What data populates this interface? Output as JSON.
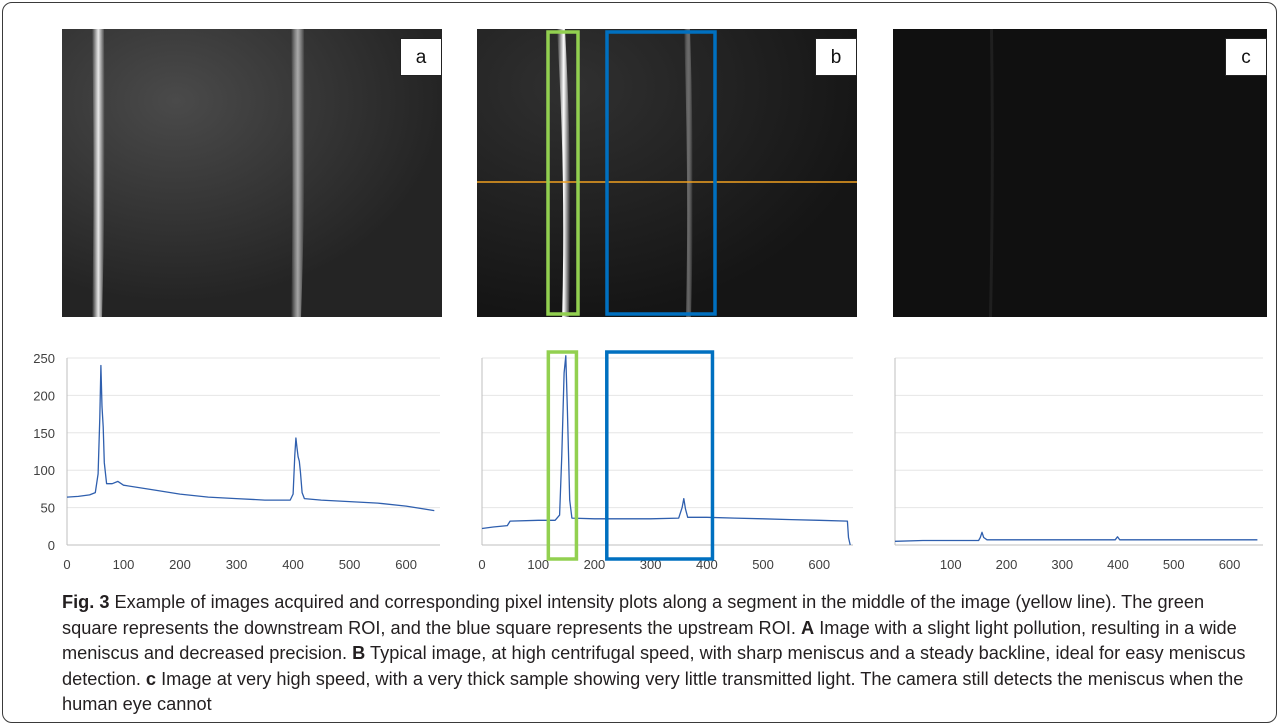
{
  "panels": [
    {
      "id": "a",
      "label": "a"
    },
    {
      "id": "b",
      "label": "b"
    },
    {
      "id": "c",
      "label": "c"
    }
  ],
  "colors": {
    "profile_line": "#2f5fae",
    "grid": "#e6e6e6",
    "downstream_roi": "#92d050",
    "upstream_roi": "#0070c0",
    "segment_line": "#f0a020",
    "tick_label": "#404040"
  },
  "caption": {
    "fig_label": "Fig. 3",
    "text_1": " Example of images acquired and corresponding pixel intensity plots along a segment in the middle of the image (yellow line). The green square represents the downstream ROI, and the blue square represents the upstream ROI. ",
    "a_label": "A",
    "text_a": " Image with a slight light pollution, resulting in a wide meniscus and decreased precision. ",
    "b_label": "B",
    "text_b": " Typical image, at high centrifugal speed, with sharp meniscus and a steady backline, ideal for easy meniscus detection. ",
    "c_label": "c",
    "text_c": " Image at very high speed, with a very thick sample showing very little transmitted light. The camera still detects the meniscus when the human eye cannot"
  },
  "chart_data": [
    {
      "type": "line",
      "panel": "a",
      "xlim": [
        0,
        660
      ],
      "ylim": [
        0,
        250
      ],
      "x_ticks": [
        0,
        100,
        200,
        300,
        400,
        500,
        600
      ],
      "y_ticks": [
        0,
        50,
        100,
        150,
        200,
        250
      ],
      "show_y_tick_labels": true,
      "grid": true,
      "series": [
        {
          "x": [
            0,
            20,
            40,
            50,
            55,
            58,
            60,
            62,
            64,
            66,
            70,
            80,
            90,
            100,
            150,
            200,
            250,
            300,
            350,
            395,
            400,
            403,
            405,
            407,
            409,
            411,
            413,
            416,
            420,
            450,
            500,
            550,
            600,
            650
          ],
          "y": [
            64,
            65,
            67,
            70,
            95,
            170,
            240,
            185,
            158,
            110,
            82,
            82,
            85,
            80,
            74,
            68,
            64,
            62,
            60,
            60,
            68,
            120,
            143,
            130,
            118,
            112,
            98,
            70,
            62,
            60,
            58,
            56,
            52,
            46
          ]
        }
      ]
    },
    {
      "type": "line",
      "panel": "b",
      "xlim": [
        0,
        660
      ],
      "ylim": [
        0,
        250
      ],
      "x_ticks": [
        0,
        100,
        200,
        300,
        400,
        500,
        600
      ],
      "y_ticks": [
        0,
        50,
        100,
        150,
        200,
        250
      ],
      "show_y_tick_labels": false,
      "grid": true,
      "series": [
        {
          "x": [
            0,
            20,
            45,
            50,
            100,
            130,
            138,
            142,
            146,
            149,
            152,
            156,
            160,
            200,
            250,
            300,
            350,
            356,
            359,
            362,
            366,
            400,
            450,
            500,
            550,
            600,
            650,
            652,
            655
          ],
          "y": [
            22,
            24,
            26,
            32,
            33,
            33,
            40,
            120,
            230,
            253,
            180,
            60,
            36,
            35,
            35,
            35,
            36,
            50,
            62,
            48,
            37,
            37,
            36,
            35,
            34,
            33,
            32,
            10,
            0
          ]
        }
      ],
      "roi": [
        {
          "name": "downstream",
          "x_range": [
            118,
            168
          ],
          "y_top": 258
        },
        {
          "name": "upstream",
          "x_range": [
            222,
            410
          ],
          "y_top": 258
        }
      ]
    },
    {
      "type": "line",
      "panel": "c",
      "xlim": [
        0,
        660
      ],
      "ylim": [
        0,
        250
      ],
      "x_ticks": [
        0,
        100,
        200,
        300,
        400,
        500,
        600
      ],
      "x_tick_labels": [
        "",
        "100",
        "200",
        "300",
        "400",
        "500",
        "600"
      ],
      "y_ticks": [
        0,
        50,
        100,
        150,
        200,
        250
      ],
      "show_y_tick_labels": false,
      "grid": true,
      "series": [
        {
          "x": [
            0,
            50,
            100,
            150,
            153,
            156,
            159,
            165,
            200,
            300,
            395,
            399,
            403,
            450,
            500,
            600,
            650
          ],
          "y": [
            5,
            6,
            6,
            6,
            10,
            17,
            10,
            7,
            7,
            7,
            7,
            11,
            7,
            7,
            7,
            7,
            7
          ]
        }
      ]
    }
  ]
}
